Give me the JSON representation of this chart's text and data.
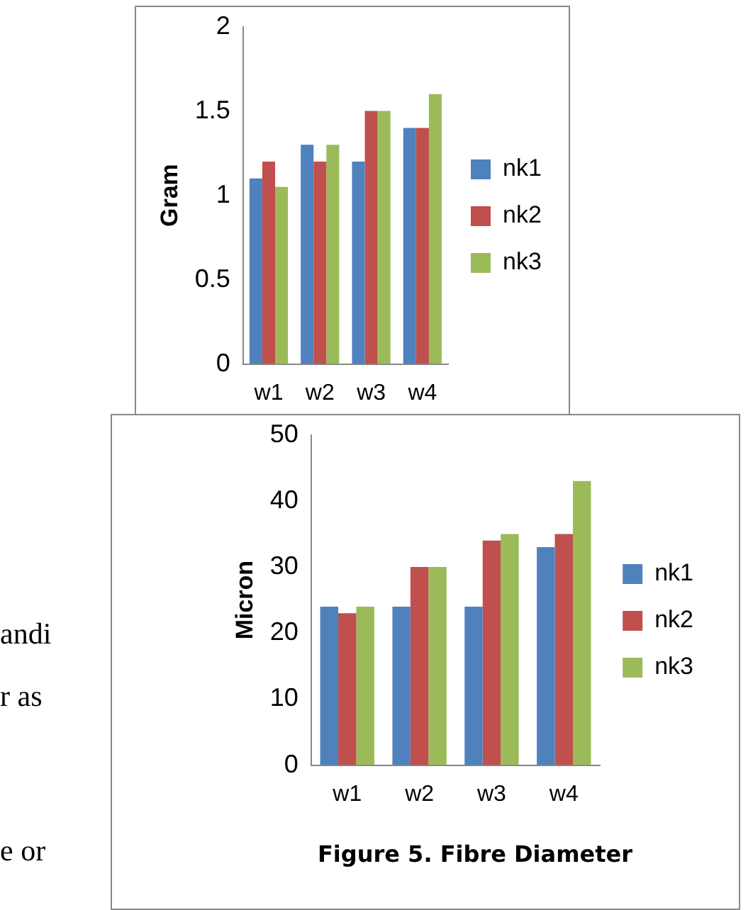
{
  "chart_data": [
    {
      "type": "bar",
      "categories": [
        "w1",
        "w2",
        "w3",
        "w4"
      ],
      "ylabel": "Gram",
      "ylim": [
        0,
        2
      ],
      "yticks": [
        0,
        0.5,
        1,
        1.5,
        2
      ],
      "grid": false,
      "legend": "right",
      "series": [
        {
          "name": "nk1",
          "color": "#4f81bd",
          "values": [
            1.1,
            1.3,
            1.2,
            1.4
          ]
        },
        {
          "name": "nk2",
          "color": "#c0504d",
          "values": [
            1.2,
            1.2,
            1.5,
            1.4
          ]
        },
        {
          "name": "nk3",
          "color": "#9bbb59",
          "values": [
            1.05,
            1.3,
            1.5,
            1.6
          ]
        }
      ]
    },
    {
      "type": "bar",
      "categories": [
        "w1",
        "w2",
        "w3",
        "w4"
      ],
      "ylabel": "Micron",
      "ylim": [
        0,
        50
      ],
      "yticks": [
        0,
        10,
        20,
        30,
        40,
        50
      ],
      "grid": false,
      "legend": "right",
      "annotations": [
        "Figure 5.  Fibre Diameter",
        "andi",
        "r as",
        "e or"
      ],
      "series": [
        {
          "name": "nk1",
          "color": "#4f81bd",
          "values": [
            24,
            24,
            24,
            33
          ]
        },
        {
          "name": "nk2",
          "color": "#c0504d",
          "values": [
            23,
            30,
            34,
            35
          ]
        },
        {
          "name": "nk3",
          "color": "#9bbb59",
          "values": [
            24,
            30,
            35,
            43
          ]
        }
      ]
    }
  ]
}
